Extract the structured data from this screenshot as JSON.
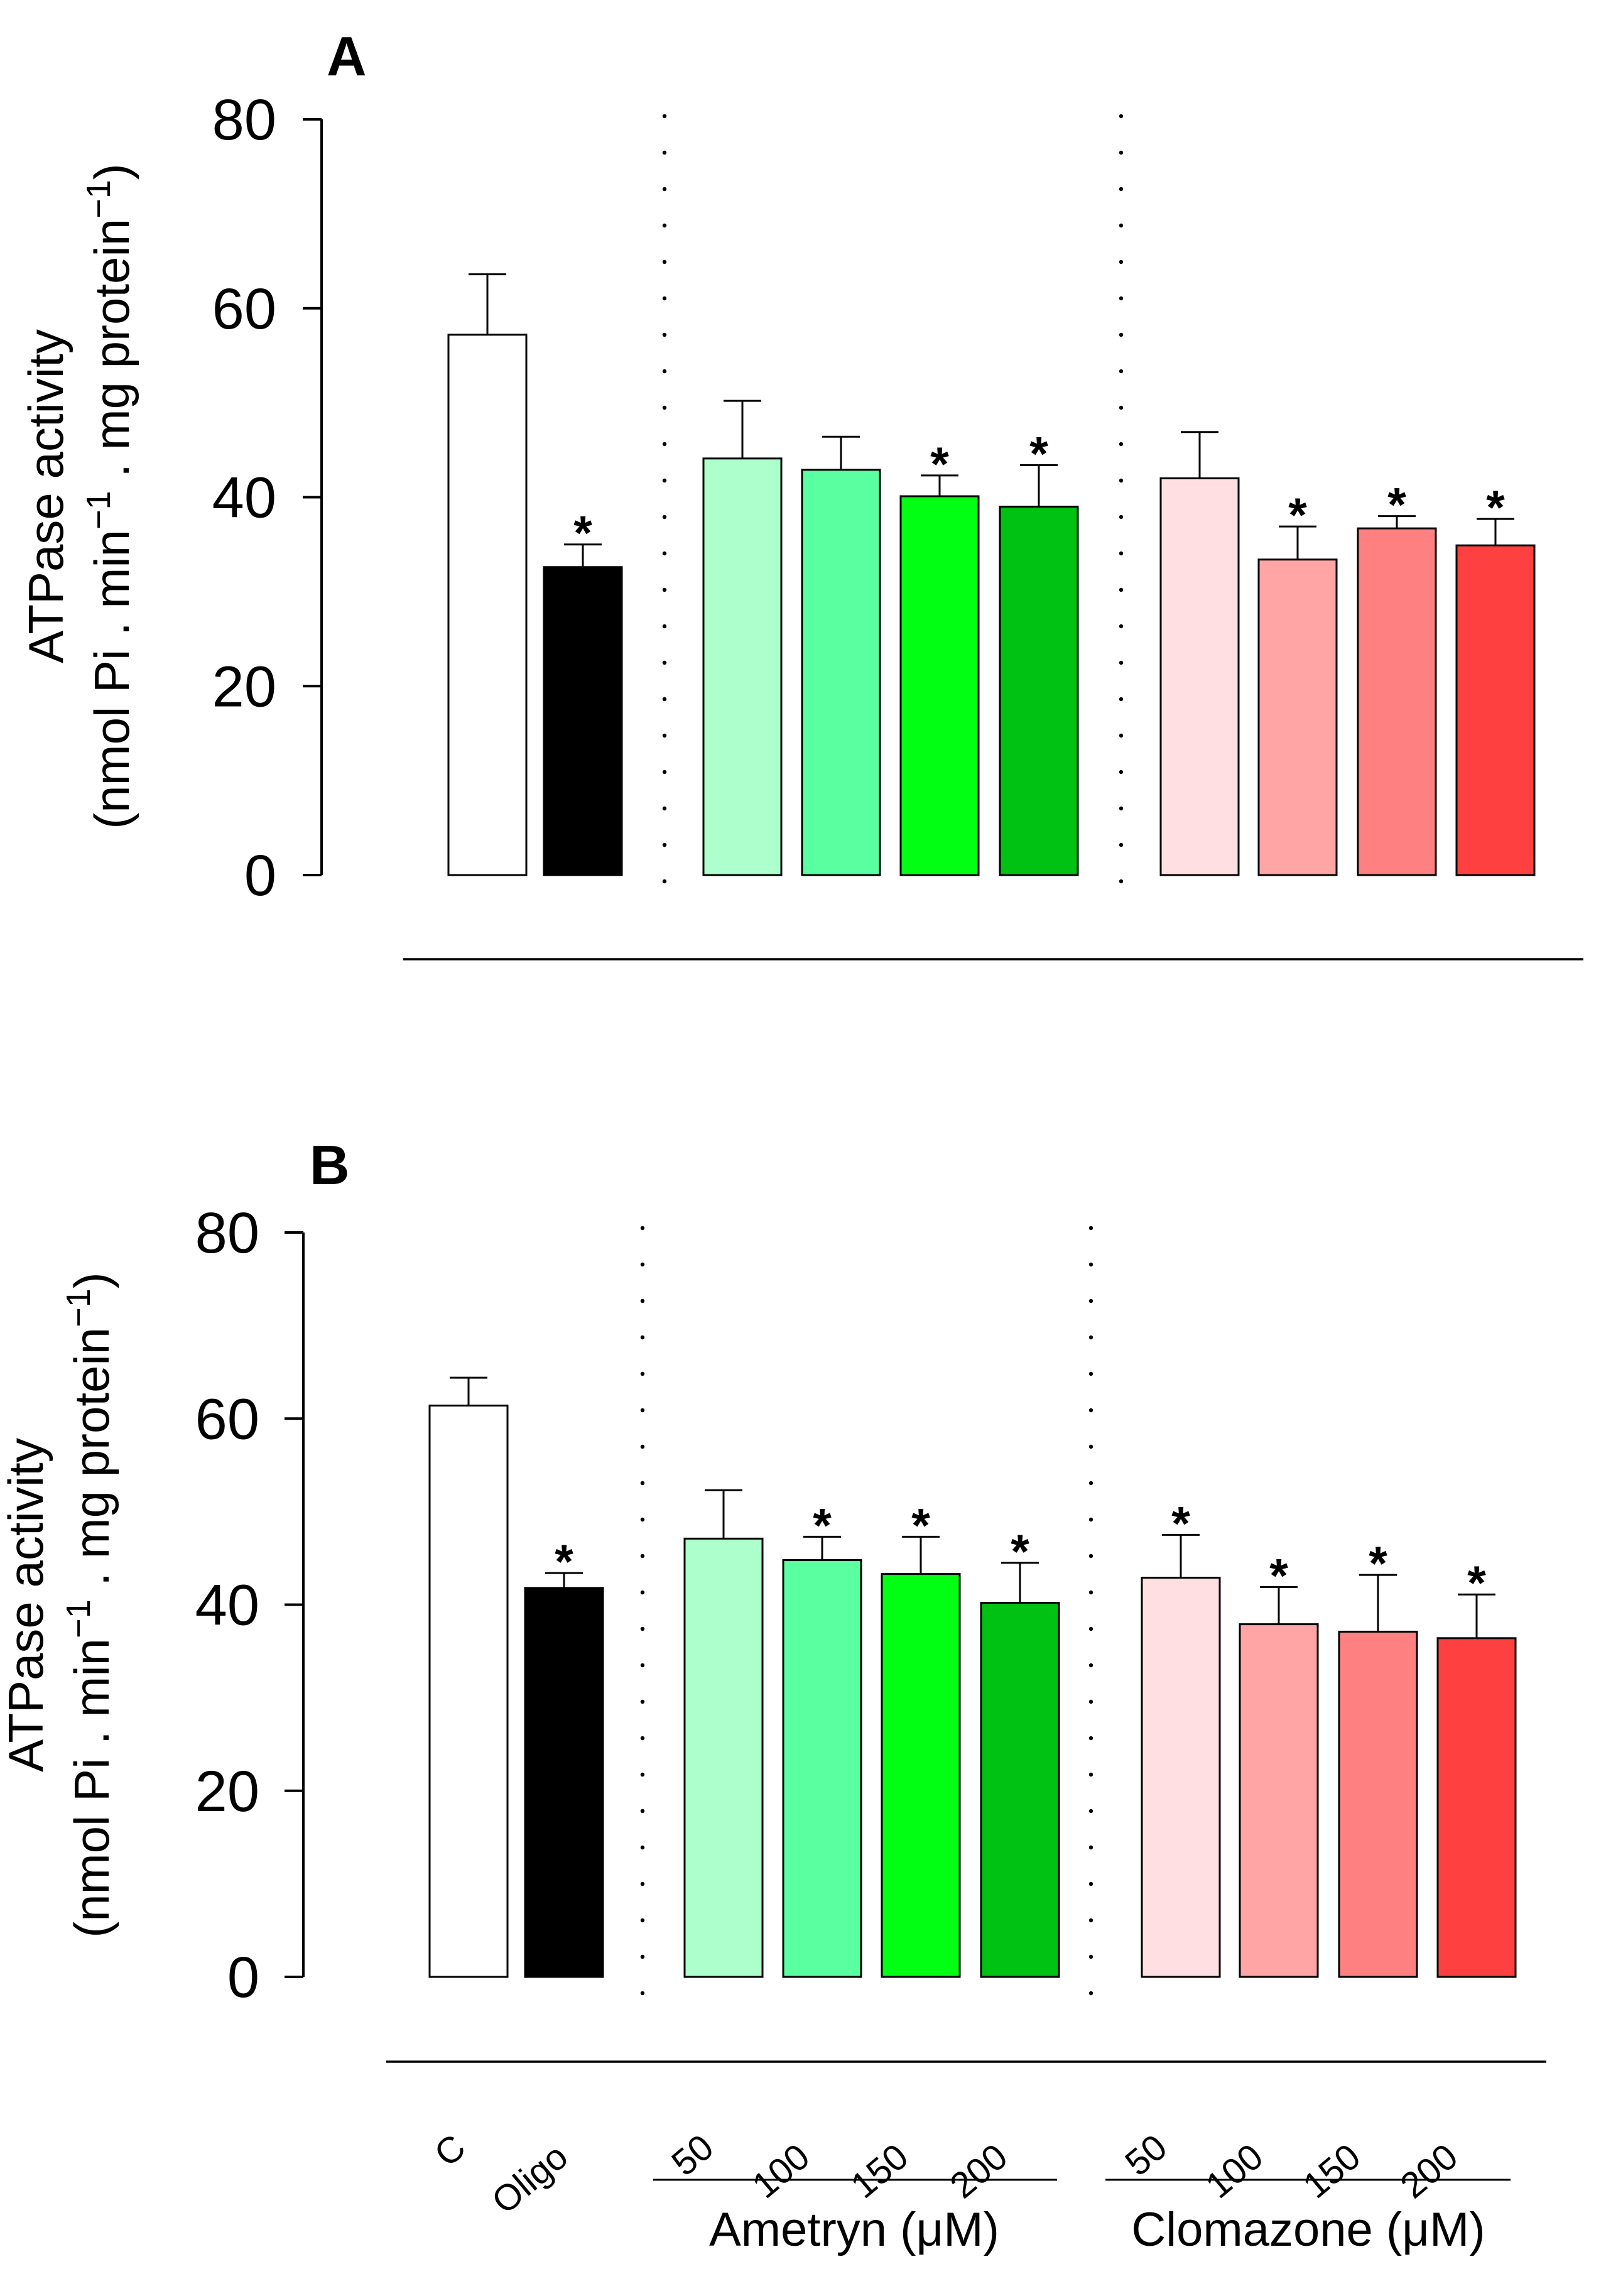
{
  "chart_data": [
    {
      "panel": "A",
      "type": "bar",
      "ylabel_line1": "ATPase activity",
      "ylabel_line2_parts": [
        "(nmol Pi . min",
        "−1",
        " . mg protein",
        "−1",
        ")"
      ],
      "ylim": [
        0,
        80
      ],
      "yticks": [
        0,
        20,
        40,
        60,
        80
      ],
      "categories": [
        "C",
        "Oligo",
        "50",
        "100",
        "150",
        "200",
        "50",
        "100",
        "150",
        "200"
      ],
      "values": [
        57.2,
        32.6,
        44.1,
        42.9,
        40.1,
        39.0,
        42.0,
        33.4,
        36.7,
        34.9
      ],
      "errors": [
        6.4,
        2.4,
        6.1,
        3.5,
        2.2,
        4.4,
        4.9,
        3.5,
        1.3,
        2.8
      ],
      "significant": [
        false,
        true,
        false,
        false,
        true,
        true,
        false,
        true,
        true,
        true
      ],
      "colors": [
        "#ffffff",
        "#000000",
        "#adffcc",
        "#5affa0",
        "#00ff12",
        "#00c212",
        "#ffdfe2",
        "#ffa5a5",
        "#ff8080",
        "#ff4040"
      ],
      "star_symbol": "*"
    },
    {
      "panel": "B",
      "type": "bar",
      "ylabel_line1": "ATPase activity",
      "ylabel_line2_parts": [
        "(nmol Pi . min",
        "−1",
        " . mg protein",
        "−1",
        ")"
      ],
      "ylim": [
        0,
        80
      ],
      "yticks": [
        0,
        20,
        40,
        60,
        80
      ],
      "categories": [
        "C",
        "Oligo",
        "50",
        "100",
        "150",
        "200",
        "50",
        "100",
        "150",
        "200"
      ],
      "values": [
        61.4,
        41.8,
        47.1,
        44.8,
        43.3,
        40.2,
        42.9,
        37.9,
        37.1,
        36.4
      ],
      "errors": [
        3.0,
        1.6,
        5.2,
        2.5,
        4.0,
        4.3,
        4.6,
        4.0,
        6.1,
        4.7
      ],
      "significant": [
        false,
        true,
        false,
        true,
        true,
        true,
        true,
        true,
        true,
        true
      ],
      "colors": [
        "#ffffff",
        "#000000",
        "#adffcc",
        "#5affa0",
        "#00ff12",
        "#00c212",
        "#ffdfe2",
        "#ffa5a5",
        "#ff8080",
        "#ff4040"
      ],
      "star_symbol": "*"
    }
  ],
  "x_axis": {
    "category_labels": [
      "C",
      "Oligo",
      "50",
      "100",
      "150",
      "200",
      "50",
      "100",
      "150",
      "200"
    ],
    "groups": [
      {
        "name": "Ametryn (μM)"
      },
      {
        "name": "Clomazone (μM)"
      }
    ]
  }
}
